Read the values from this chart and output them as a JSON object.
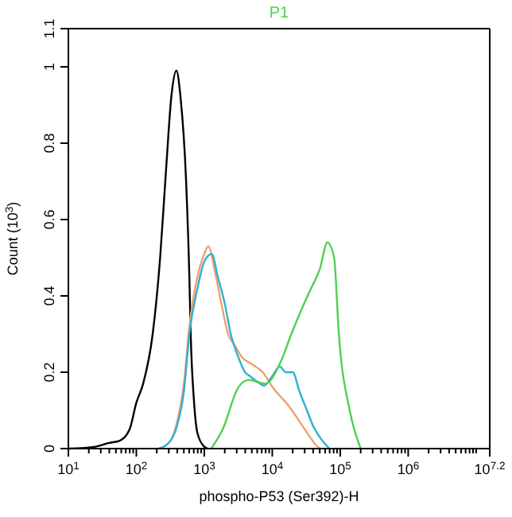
{
  "chart_data": {
    "type": "line",
    "title": "P1",
    "xlabel": "phospho-P53 (Ser392)-H",
    "ylabel": "Count (10$^{3}$)",
    "log": "x",
    "xlim": [
      10,
      15848932
    ],
    "ylim": [
      0,
      1.1
    ],
    "xticks": [
      {
        "value": 10,
        "label": "10$^{1}$"
      },
      {
        "value": 20,
        "label": null
      },
      {
        "value": 30,
        "label": null
      },
      {
        "value": 40,
        "label": null
      },
      {
        "value": 50,
        "label": null
      },
      {
        "value": 60,
        "label": null
      },
      {
        "value": 70,
        "label": null
      },
      {
        "value": 80,
        "label": null
      },
      {
        "value": 90,
        "label": null
      },
      {
        "value": 100,
        "label": "10$^{2}$"
      },
      {
        "value": 200,
        "label": null
      },
      {
        "value": 300,
        "label": null
      },
      {
        "value": 400,
        "label": null
      },
      {
        "value": 500,
        "label": null
      },
      {
        "value": 600,
        "label": null
      },
      {
        "value": 700,
        "label": null
      },
      {
        "value": 800,
        "label": null
      },
      {
        "value": 900,
        "label": null
      },
      {
        "value": 1000,
        "label": "10$^{3}$"
      },
      {
        "value": 2000,
        "label": null
      },
      {
        "value": 3000,
        "label": null
      },
      {
        "value": 4000,
        "label": null
      },
      {
        "value": 5000,
        "label": null
      },
      {
        "value": 6000,
        "label": null
      },
      {
        "value": 7000,
        "label": null
      },
      {
        "value": 8000,
        "label": null
      },
      {
        "value": 9000,
        "label": null
      },
      {
        "value": 10000,
        "label": "10$^{4}$"
      },
      {
        "value": 20000,
        "label": null
      },
      {
        "value": 30000,
        "label": null
      },
      {
        "value": 40000,
        "label": null
      },
      {
        "value": 50000,
        "label": null
      },
      {
        "value": 60000,
        "label": null
      },
      {
        "value": 70000,
        "label": null
      },
      {
        "value": 80000,
        "label": null
      },
      {
        "value": 90000,
        "label": null
      },
      {
        "value": 100000,
        "label": "10$^{5}$"
      },
      {
        "value": 200000,
        "label": null
      },
      {
        "value": 300000,
        "label": null
      },
      {
        "value": 400000,
        "label": null
      },
      {
        "value": 500000,
        "label": null
      },
      {
        "value": 600000,
        "label": null
      },
      {
        "value": 700000,
        "label": null
      },
      {
        "value": 800000,
        "label": null
      },
      {
        "value": 900000,
        "label": null
      },
      {
        "value": 1000000,
        "label": "10$^{6}$"
      },
      {
        "value": 2000000,
        "label": null
      },
      {
        "value": 3000000,
        "label": null
      },
      {
        "value": 4000000,
        "label": null
      },
      {
        "value": 5000000,
        "label": null
      },
      {
        "value": 6000000,
        "label": null
      },
      {
        "value": 7000000,
        "label": null
      },
      {
        "value": 8000000,
        "label": null
      },
      {
        "value": 9000000,
        "label": null
      },
      {
        "value": 10000000,
        "label": null
      },
      {
        "value": 15848932,
        "label": "10$^{7.2}$"
      }
    ],
    "yticks": [
      0,
      0.2,
      0.4,
      0.6,
      0.8,
      1,
      1.1
    ],
    "grid": false,
    "line_style": "solid",
    "series": [
      {
        "color": "#000000",
        "x": [
          10,
          25.1,
          39.8,
          56.2,
          79.4,
          100,
          126,
          174,
          224,
          269,
          331,
          389,
          447,
          537,
          603,
          631,
          708,
          794,
          1000,
          1120
        ],
        "values": [
          0,
          0.005,
          0.015,
          0.02,
          0.05,
          0.12,
          0.17,
          0.3,
          0.5,
          0.71,
          0.93,
          0.99,
          0.92,
          0.71,
          0.45,
          0.3,
          0.12,
          0.04,
          0.005,
          0
        ]
      },
      {
        "color": "#f0a070",
        "x": [
          214,
          316,
          398,
          501,
          603,
          794,
          1000,
          1150,
          1410,
          1780,
          2240,
          2820,
          3550,
          5130,
          7240,
          10200,
          17800,
          30200,
          43700,
          50100
        ],
        "values": [
          0,
          0.02,
          0.07,
          0.17,
          0.32,
          0.45,
          0.51,
          0.53,
          0.47,
          0.38,
          0.3,
          0.27,
          0.24,
          0.22,
          0.2,
          0.16,
          0.11,
          0.05,
          0.01,
          0
        ]
      },
      {
        "color": "#30b0d0",
        "x": [
          214,
          316,
          398,
          501,
          603,
          794,
          1000,
          1290,
          1580,
          2000,
          2450,
          3160,
          3980,
          4680,
          6030,
          7590,
          10000,
          12900,
          15800,
          20000,
          25100,
          32400,
          39800,
          50100,
          69200
        ],
        "values": [
          0,
          0.02,
          0.06,
          0.15,
          0.3,
          0.42,
          0.49,
          0.51,
          0.45,
          0.38,
          0.3,
          0.24,
          0.2,
          0.19,
          0.175,
          0.165,
          0.19,
          0.215,
          0.2,
          0.2,
          0.15,
          0.1,
          0.06,
          0.03,
          0
        ]
      },
      {
        "color": "#50d050",
        "x": [
          1260,
          1860,
          3160,
          4470,
          7940,
          13500,
          19100,
          33100,
          39800,
          50100,
          64600,
          81300,
          95500,
          138000,
          200000
        ],
        "values": [
          0,
          0.05,
          0.16,
          0.18,
          0.17,
          0.23,
          0.3,
          0.4,
          0.43,
          0.47,
          0.54,
          0.5,
          0.3,
          0.1,
          0
        ]
      }
    ]
  }
}
